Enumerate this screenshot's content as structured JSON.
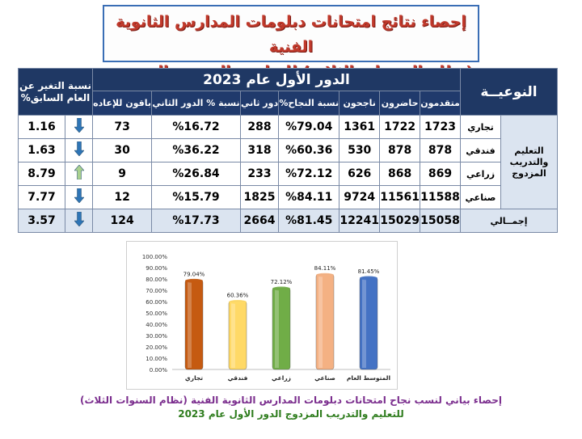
{
  "title": {
    "line1": "إحصاء نتائج امتحانات دبلومات المدارس الثانوية الفنية",
    "line2": "(نظام السنوات الثلاث) للتعليم والتدريب المزدوج"
  },
  "table": {
    "type_header": "النوعيــة",
    "round_header": "الدور الأول عام 2023",
    "change_header": "نسبة التغير عن العام السابق%",
    "columns": [
      "متقدمون",
      "حاضرون",
      "ناجحون",
      "نسبة النجاح%",
      "دور ثاني",
      "نسبة % الدور الثاني",
      "باقون للإعاده"
    ],
    "group_label": "التعليم والتدريب المزدوج",
    "total_label": "إجمــالي",
    "rows": [
      {
        "type": "تجاري",
        "values": [
          "1723",
          "1722",
          "1361",
          "%79.04",
          "288",
          "%16.72",
          "73"
        ],
        "arrow": "down",
        "change": "1.16"
      },
      {
        "type": "فندقي",
        "values": [
          "878",
          "878",
          "530",
          "%60.36",
          "318",
          "%36.22",
          "30"
        ],
        "arrow": "down",
        "change": "1.63"
      },
      {
        "type": "زراعي",
        "values": [
          "869",
          "868",
          "626",
          "%72.12",
          "233",
          "%26.84",
          "9"
        ],
        "arrow": "up",
        "change": "8.79"
      },
      {
        "type": "صناعي",
        "values": [
          "11588",
          "11561",
          "9724",
          "%84.11",
          "1825",
          "%15.79",
          "12"
        ],
        "arrow": "down",
        "change": "7.77"
      }
    ],
    "total": {
      "values": [
        "15058",
        "15029",
        "12241",
        "%81.45",
        "2664",
        "%17.73",
        "124"
      ],
      "arrow": "down",
      "change": "3.57"
    }
  },
  "chart_data": {
    "type": "bar",
    "categories": [
      "تجاري",
      "فندقي",
      "زراعي",
      "صناعي",
      "المتوسط العام"
    ],
    "values": [
      79.04,
      60.36,
      72.12,
      84.11,
      81.45
    ],
    "data_labels": [
      "79.04%",
      "60.36%",
      "72.12%",
      "84.11%",
      "81.45%"
    ],
    "colors": [
      "#c55a11",
      "#ffd966",
      "#70ad47",
      "#f4b183",
      "#4472c4"
    ],
    "ylim": [
      0,
      100
    ],
    "yticks": [
      "0.00%",
      "10.00%",
      "20.00%",
      "30.00%",
      "40.00%",
      "50.00%",
      "60.00%",
      "70.00%",
      "80.00%",
      "90.00%",
      "100.00%"
    ],
    "grid": false,
    "legend": "none"
  },
  "caption": {
    "line1": "إحصاء بياني لنسب نجاح امتحانات دبلومات المدارس الثانوية الفنية (نظام السنوات الثلاث)",
    "line2": "للتعليم والتدريب المزدوج الدور الأول عام 2023"
  },
  "colors": {
    "header_bg": "#1f3864",
    "row_alt_bg": "#dbe4f0",
    "arrow_down": "#2e75b6",
    "arrow_up": "#a9d18e",
    "title_red": "#c0392b"
  }
}
